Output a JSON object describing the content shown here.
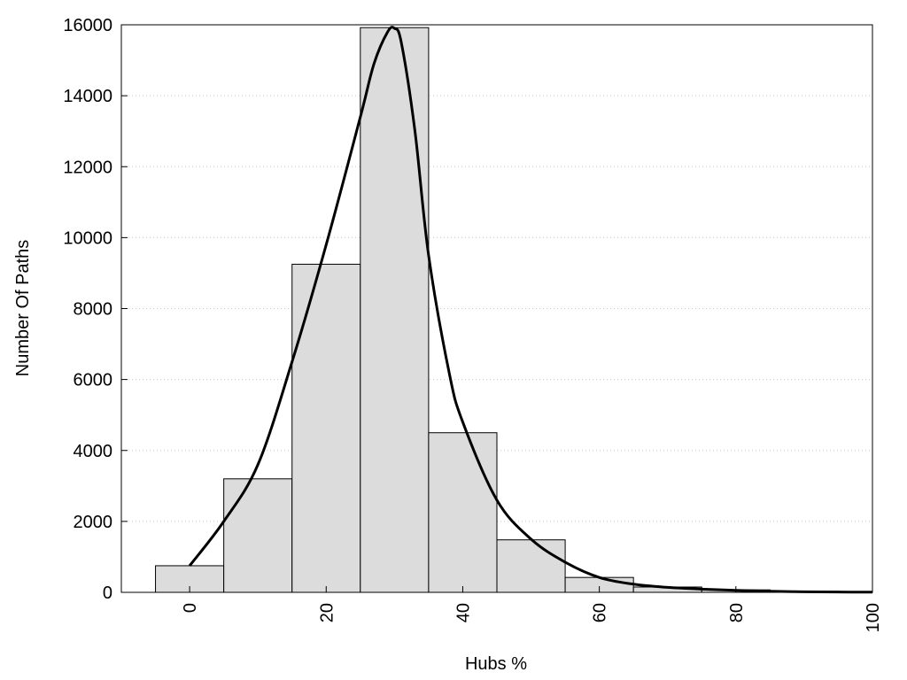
{
  "chart_data": {
    "type": "bar",
    "title": "",
    "xlabel": "Hubs %",
    "ylabel": "Number Of Paths",
    "xlim": [
      -10,
      100
    ],
    "ylim": [
      0,
      16000
    ],
    "x_ticks": [
      0,
      20,
      40,
      60,
      80,
      100
    ],
    "y_ticks": [
      0,
      2000,
      4000,
      6000,
      8000,
      10000,
      12000,
      14000,
      16000
    ],
    "grid": "horizontal dotted",
    "bin_width": 10,
    "bars": [
      {
        "x": 0,
        "value": 750
      },
      {
        "x": 10,
        "value": 3200
      },
      {
        "x": 20,
        "value": 9250
      },
      {
        "x": 30,
        "value": 15920
      },
      {
        "x": 40,
        "value": 4500
      },
      {
        "x": 50,
        "value": 1480
      },
      {
        "x": 60,
        "value": 420
      },
      {
        "x": 70,
        "value": 150
      },
      {
        "x": 80,
        "value": 70
      },
      {
        "x": 90,
        "value": 30
      }
    ],
    "curve": {
      "x": [
        0,
        5,
        10,
        15,
        20,
        25,
        27,
        29,
        30,
        31,
        33,
        35,
        38,
        40,
        45,
        50,
        55,
        60,
        65,
        70,
        75,
        80,
        85,
        90,
        95,
        100
      ],
      "y": [
        750,
        2000,
        3600,
        6500,
        9800,
        13400,
        14900,
        15800,
        15900,
        15500,
        13000,
        9500,
        6200,
        4800,
        2600,
        1500,
        850,
        420,
        230,
        140,
        90,
        55,
        30,
        15,
        8,
        5
      ]
    },
    "colors": {
      "bar_fill": "#dcdcdc",
      "bar_stroke": "#000000",
      "curve": "#000000",
      "grid": "#c8c8c8"
    }
  }
}
